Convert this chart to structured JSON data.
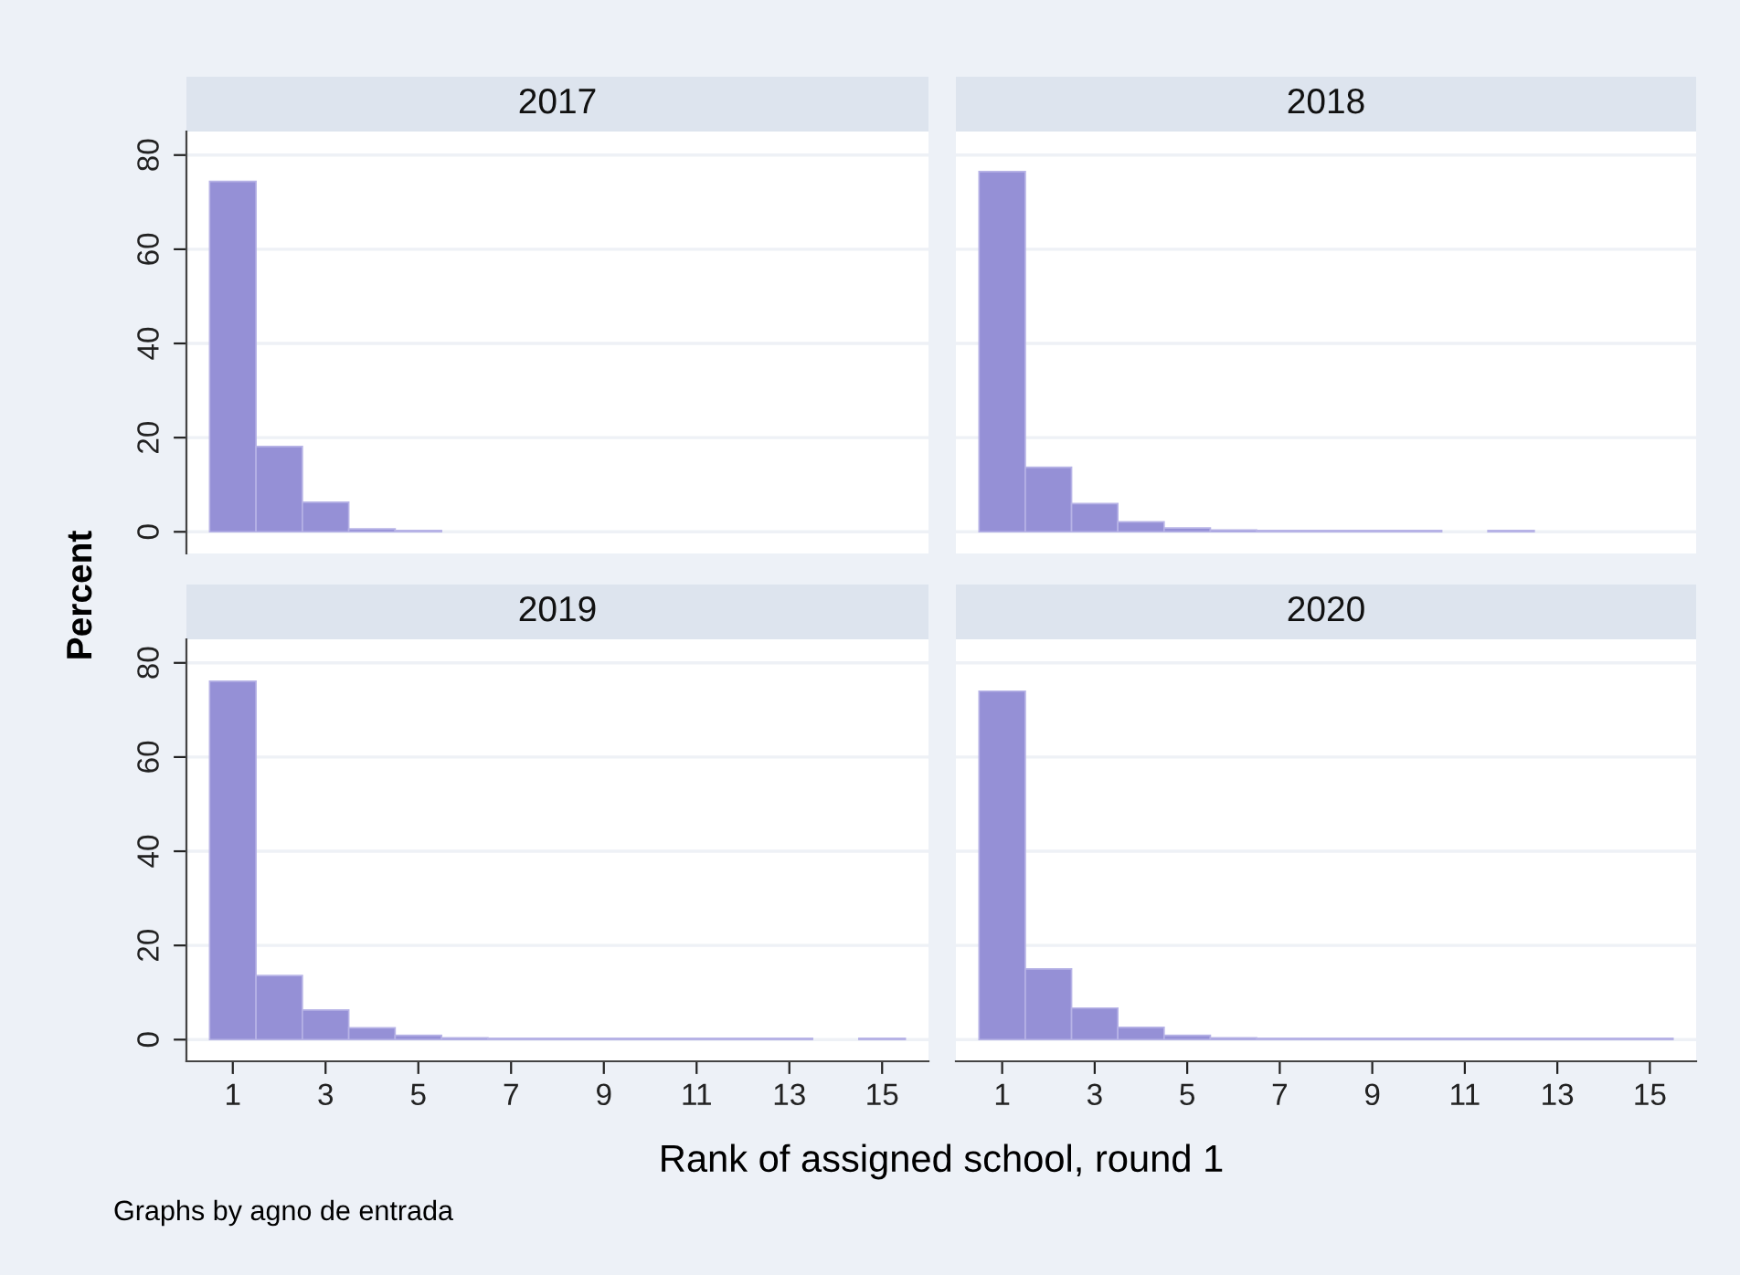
{
  "chart_data": [
    {
      "type": "histogram",
      "title": "2017",
      "ylabel": "Percent",
      "bins": [
        0.5,
        1.5,
        2.5,
        3.5,
        4.5,
        5.5
      ],
      "values": [
        74.4,
        18.1,
        6.3,
        0.6,
        0.3
      ],
      "color": "#9590d6",
      "xlim": [
        0,
        16
      ],
      "ylim": [
        -4.6,
        85
      ],
      "xticks": [
        1,
        3,
        5,
        7,
        9,
        11,
        13,
        15
      ],
      "yticks": [
        0,
        20,
        40,
        60,
        80
      ],
      "grid": "y",
      "legend": false,
      "tick_labels": "y"
    },
    {
      "type": "histogram",
      "title": "2018",
      "bins": [
        0.5,
        1.5,
        2.5,
        3.5,
        4.5,
        5.5,
        6.5,
        7.5,
        8.5,
        9.5,
        10.5,
        11.5,
        12.5
      ],
      "values": [
        76.5,
        13.7,
        6.0,
        2.1,
        0.8,
        0.4,
        0.3,
        0.3,
        0.3,
        0.3,
        0,
        0.3
      ],
      "color": "#9590d6",
      "xlim": [
        0,
        16
      ],
      "ylim": [
        -4.6,
        85
      ],
      "xticks": [
        1,
        3,
        5,
        7,
        9,
        11,
        13,
        15
      ],
      "yticks": [
        0,
        20,
        40,
        60,
        80
      ],
      "grid": "y",
      "legend": false,
      "tick_labels": false
    },
    {
      "type": "histogram",
      "title": "2019",
      "xlabel": "Rank of assigned school, round 1",
      "bins": [
        0.5,
        1.5,
        2.5,
        3.5,
        4.5,
        5.5,
        6.5,
        7.5,
        8.5,
        9.5,
        10.5,
        11.5,
        12.5,
        13.5,
        14.5,
        15.5
      ],
      "values": [
        76.1,
        13.6,
        6.3,
        2.5,
        0.9,
        0.4,
        0.3,
        0.3,
        0.3,
        0.3,
        0.3,
        0.3,
        0.3,
        0,
        0.3
      ],
      "color": "#9590d6",
      "xlim": [
        0,
        16
      ],
      "ylim": [
        -4.6,
        85
      ],
      "xticks": [
        1,
        3,
        5,
        7,
        9,
        11,
        13,
        15
      ],
      "yticks": [
        0,
        20,
        40,
        60,
        80
      ],
      "grid": "y",
      "legend": false
    },
    {
      "type": "histogram",
      "title": "2020",
      "annotations": [
        "Graphs by agno de entrada"
      ],
      "bins": [
        0.5,
        1.5,
        2.5,
        3.5,
        4.5,
        5.5,
        6.5,
        7.5,
        8.5,
        9.5,
        10.5,
        11.5,
        12.5,
        13.5,
        14.5,
        15.5
      ],
      "values": [
        74.0,
        15.0,
        6.7,
        2.6,
        0.9,
        0.4,
        0.3,
        0.3,
        0.3,
        0.3,
        0.3,
        0.3,
        0.3,
        0.3,
        0.3
      ],
      "color": "#9590d6",
      "xlim": [
        0,
        16
      ],
      "ylim": [
        -4.6,
        85
      ],
      "xticks": [
        1,
        3,
        5,
        7,
        9,
        11,
        13,
        15
      ],
      "yticks": [
        0,
        20,
        40,
        60,
        80
      ],
      "grid": "y",
      "legend": false,
      "tick_labels": "x"
    }
  ]
}
